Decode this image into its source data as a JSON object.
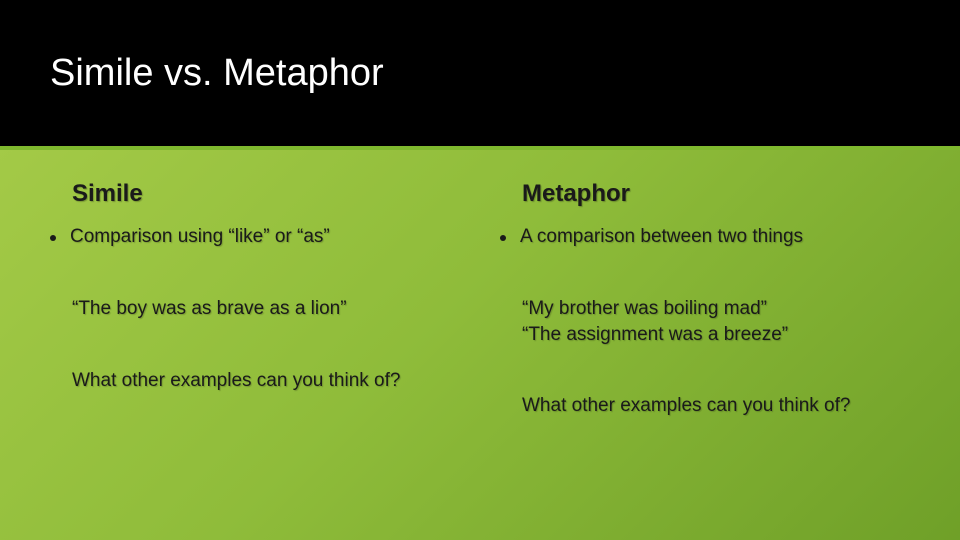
{
  "slide": {
    "title": "Simile vs. Metaphor",
    "background_gradient": [
      "#a8cd4a",
      "#8fbc3a",
      "#6fa028"
    ],
    "header_bg": "#000000",
    "header_accent": "#7fb82e",
    "title_color": "#ffffff",
    "body_text_color": "#1a1a1a",
    "title_fontsize": 38,
    "heading_fontsize": 24,
    "body_fontsize": 19
  },
  "left": {
    "heading": "Simile",
    "bullet": "Comparison using “like” or “as”",
    "example_line1": "“The boy was as brave as a lion”",
    "prompt": "What other examples can you think of?"
  },
  "right": {
    "heading": "Metaphor",
    "bullet": "A comparison between two things",
    "example_line1": "“My brother was boiling mad”",
    "example_line2": "“The assignment was a breeze”",
    "prompt": "What other examples can you think of?"
  }
}
